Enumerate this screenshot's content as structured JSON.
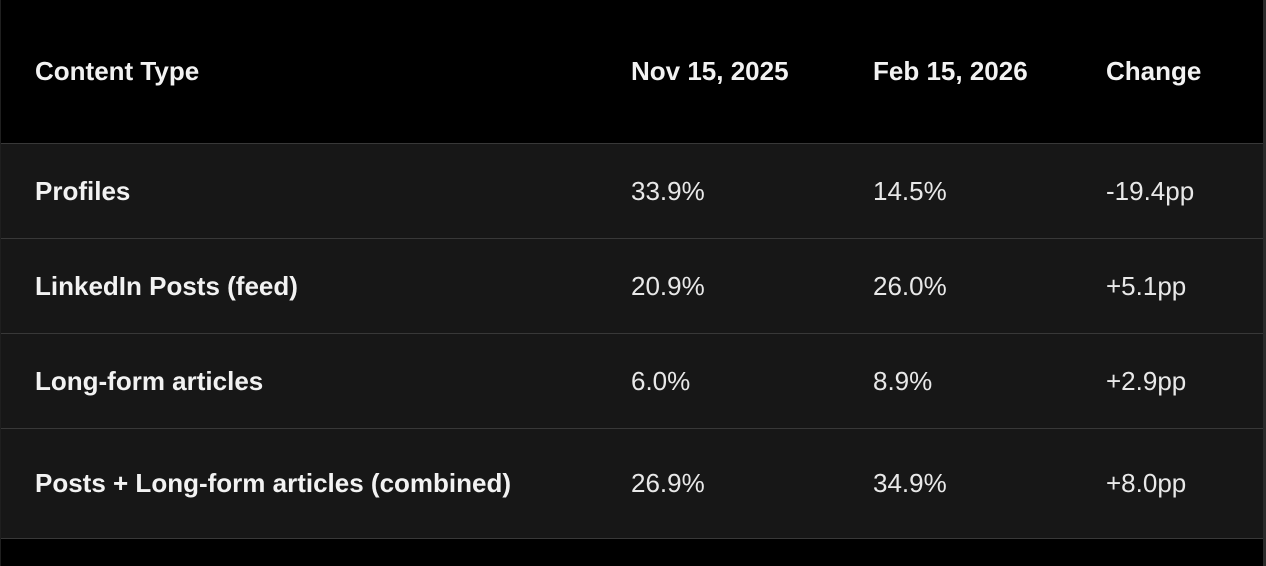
{
  "chart_data": {
    "type": "table",
    "title": "",
    "columns": [
      "Content Type",
      "Nov 15, 2025",
      "Feb 15, 2026",
      "Change"
    ],
    "rows": [
      {
        "content_type": "Profiles",
        "nov_15_2025": "33.9%",
        "feb_15_2026": "14.5%",
        "change": "-19.4pp"
      },
      {
        "content_type": "LinkedIn Posts (feed)",
        "nov_15_2025": "20.9%",
        "feb_15_2026": "26.0%",
        "change": "+5.1pp"
      },
      {
        "content_type": "Long-form articles",
        "nov_15_2025": "6.0%",
        "feb_15_2026": "8.9%",
        "change": "+2.9pp"
      },
      {
        "content_type": "Posts + Long-form articles (combined)",
        "nov_15_2025": "26.9%",
        "feb_15_2026": "34.9%",
        "change": "+8.0pp"
      }
    ]
  },
  "table": {
    "headers": [
      {
        "label": "Content Type"
      },
      {
        "label": "Nov 15, 2025"
      },
      {
        "label": "Feb 15, 2026"
      },
      {
        "label": "Change"
      }
    ],
    "rows": [
      {
        "content_type": "Profiles",
        "nov": "33.9%",
        "feb": "14.5%",
        "change": "-19.4pp"
      },
      {
        "content_type": "LinkedIn Posts (feed)",
        "nov": "20.9%",
        "feb": "26.0%",
        "change": "+5.1pp"
      },
      {
        "content_type": "Long-form articles",
        "nov": "6.0%",
        "feb": "8.9%",
        "change": "+2.9pp"
      },
      {
        "content_type": "Posts + Long-form articles (combined)",
        "nov": "26.9%",
        "feb": "34.9%",
        "change": "+8.0pp"
      }
    ]
  },
  "colors": {
    "header_background": "#000000",
    "row_background": "#171717",
    "divider": "#383838",
    "header_text": "#f2f2f2",
    "value_text": "#e8e8e8",
    "page_background": "#000000"
  }
}
